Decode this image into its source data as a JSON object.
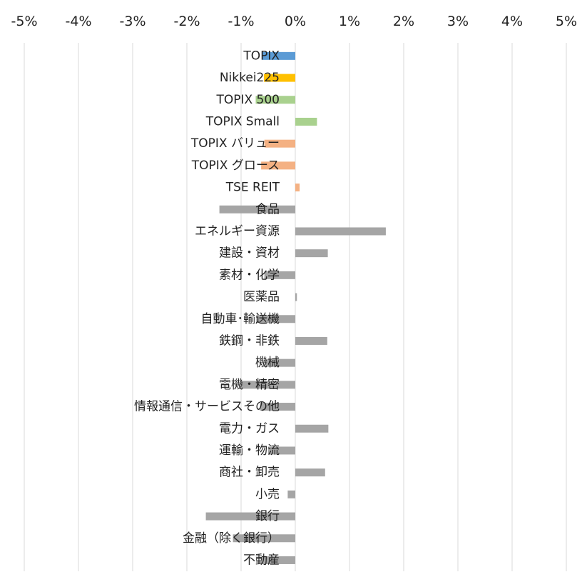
{
  "chart_data": {
    "type": "bar",
    "orientation": "horizontal",
    "title": "",
    "xlabel": "",
    "ylabel": "",
    "xlim": [
      -5,
      5
    ],
    "xticks": [
      -5,
      -4,
      -3,
      -2,
      -1,
      0,
      1,
      2,
      3,
      4,
      5
    ],
    "tick_labels": [
      "-5%",
      "-4%",
      "-3%",
      "-2%",
      "-1%",
      "0%",
      "1%",
      "2%",
      "3%",
      "4%",
      "5%"
    ],
    "axis_position": "top",
    "grid": "vertical",
    "legend": "none",
    "categories": [
      "TOPIX",
      "Nikkei225",
      "TOPIX 500",
      "TOPIX Small",
      "TOPIX バリュー",
      "TOPIX グロース",
      "TSE REIT",
      "食品",
      "エネルギー資源",
      "建設・資材",
      "素材・化学",
      "医薬品",
      "自動車･輸送機",
      "鉄鋼・非鉄",
      "機械",
      "電機・精密",
      "情報通信・サービスその他",
      "電力・ガス",
      "運輸・物流",
      "商社・卸売",
      "小売",
      "銀行",
      "金融（除く銀行）",
      "不動産"
    ],
    "values": [
      -0.62,
      -0.58,
      -0.73,
      0.4,
      -0.57,
      -0.63,
      0.08,
      -1.4,
      1.67,
      0.6,
      -0.57,
      0.03,
      -0.72,
      0.59,
      -0.55,
      -1.0,
      -0.65,
      0.61,
      -0.5,
      0.55,
      -0.14,
      -1.65,
      -1.15,
      -0.62
    ],
    "colors": [
      "#5b9bd5",
      "#ffc000",
      "#a9d18e",
      "#a9d18e",
      "#f4b183",
      "#f4b183",
      "#f4b183",
      "#a5a5a5",
      "#a5a5a5",
      "#a5a5a5",
      "#a5a5a5",
      "#a5a5a5",
      "#a5a5a5",
      "#a5a5a5",
      "#a5a5a5",
      "#a5a5a5",
      "#a5a5a5",
      "#a5a5a5",
      "#a5a5a5",
      "#a5a5a5",
      "#a5a5a5",
      "#a5a5a5",
      "#a5a5a5",
      "#a5a5a5"
    ]
  }
}
